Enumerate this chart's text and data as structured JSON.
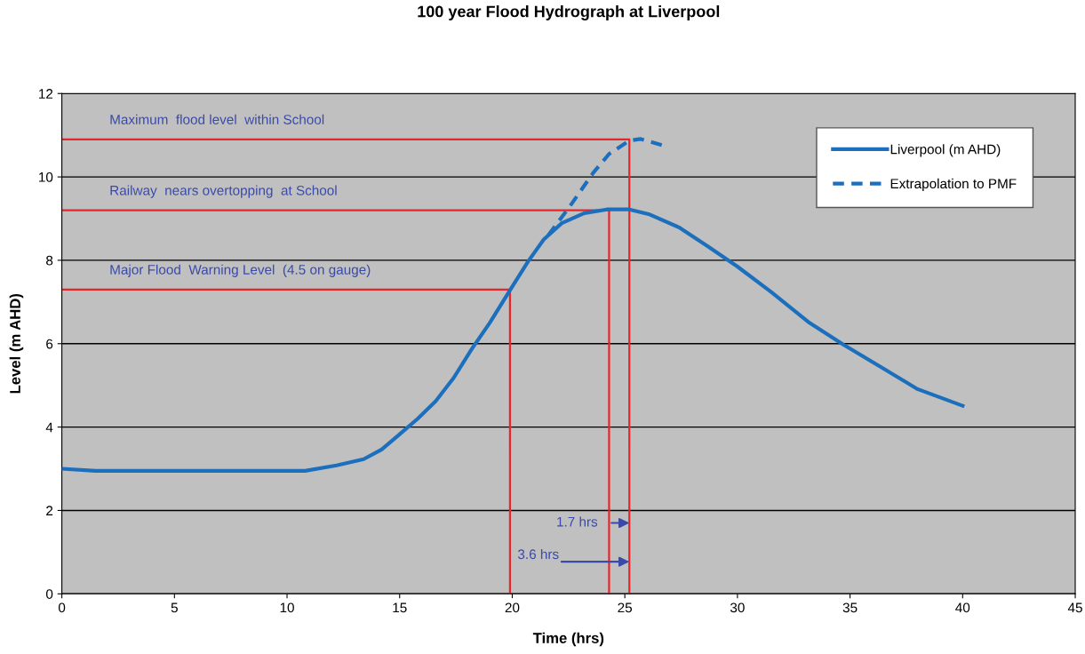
{
  "chart_data": {
    "type": "line",
    "title": "100 year Flood Hydrograph at Liverpool",
    "xlabel": "Time (hrs)",
    "ylabel": "Level (m AHD)",
    "xlim": [
      0,
      45
    ],
    "ylim": [
      0,
      12
    ],
    "xticks": [
      0,
      5,
      10,
      15,
      20,
      25,
      30,
      35,
      40,
      45
    ],
    "yticks": [
      0,
      2,
      4,
      6,
      8,
      10,
      12
    ],
    "grid": "y",
    "legend": "top right",
    "marker": "none",
    "series": [
      {
        "color": "#e8262a",
        "x": [
          0,
          25.2,
          25.2
        ],
        "values": [
          10.9,
          10.9,
          0
        ]
      },
      {
        "color": "#e8262a",
        "x": [
          0,
          24.3,
          24.3
        ],
        "values": [
          9.2,
          9.2,
          0
        ]
      },
      {
        "color": "#e8262a",
        "x": [
          0,
          19.9,
          19.9
        ],
        "values": [
          7.3,
          7.3,
          0
        ]
      },
      {
        "name": "Extrapolation to PMF",
        "color": "#1c6fbd",
        "line_style": "dashed",
        "x": [
          21.6,
          22.5,
          23.6,
          24.3,
          25.2,
          25.7,
          26.8
        ],
        "values": [
          8.6,
          9.25,
          10.1,
          10.55,
          10.87,
          10.91,
          10.74
        ]
      },
      {
        "name": "Liverpool (m AHD)",
        "color": "#1c6fbd",
        "line_style": "solid",
        "x": [
          0,
          1.5,
          5,
          10.8,
          12.2,
          13.4,
          14.2,
          14.9,
          15.8,
          16.6,
          17.4,
          18.2,
          19.0,
          19.9,
          20.7,
          21.4,
          22.2,
          23.2,
          24.2,
          25.2,
          26.1,
          27.4,
          28.7,
          30.0,
          31.5,
          33.2,
          34.7,
          36.4,
          38.0,
          40.0
        ],
        "values": [
          3.0,
          2.95,
          2.95,
          2.95,
          3.08,
          3.23,
          3.46,
          3.78,
          4.2,
          4.62,
          5.18,
          5.87,
          6.5,
          7.28,
          7.97,
          8.5,
          8.89,
          9.13,
          9.22,
          9.22,
          9.1,
          8.79,
          8.33,
          7.85,
          7.24,
          6.5,
          5.98,
          5.43,
          4.91,
          4.51
        ]
      }
    ],
    "annotations": [
      "Maximum  flood level  within School",
      "Railway  nears overtopping  at School",
      "Major Flood  Warning Level  (4.5 on gauge)",
      {
        "text": "1.7 hrs",
        "x": 25.2,
        "y": 1.7
      },
      {
        "text": "3.6 hrs",
        "x": 25.2,
        "y": 0.77
      }
    ]
  }
}
